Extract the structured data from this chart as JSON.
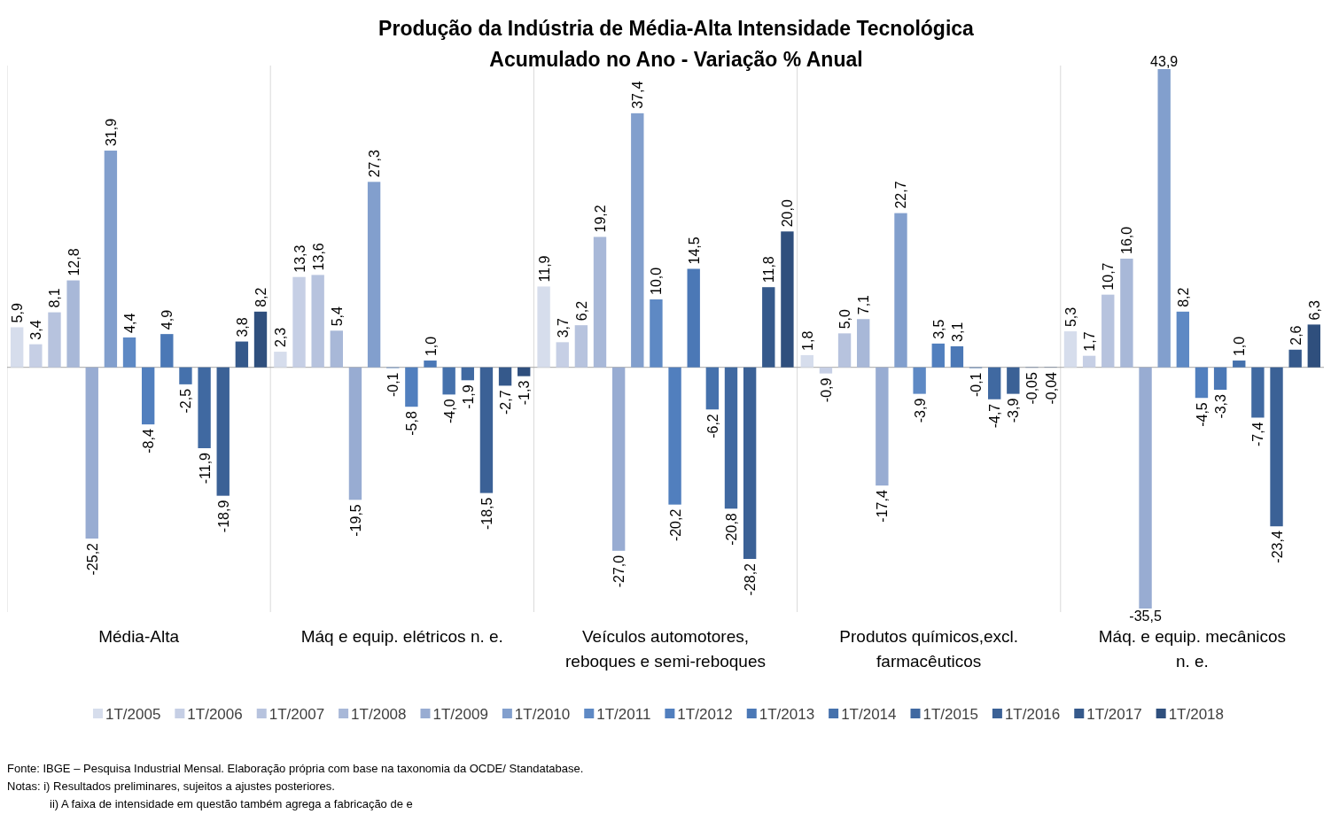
{
  "chart_data": {
    "type": "bar",
    "title": "Produção da Indústria de Média-Alta Intensidade Tecnológica",
    "subtitle": "Acumulado no Ano - Variação % Anual",
    "categories": [
      "Média-Alta",
      "Máq e equip. elétricos n. e.",
      "Veículos automotores, reboques e semi-reboques",
      "Produtos químicos,excl. farmacêuticos",
      "Máq. e equip. mecânicos n. e."
    ],
    "legend": "bottom",
    "series": [
      {
        "name": "1T/2005",
        "color": "#d6ddec",
        "values": [
          5.9,
          2.3,
          11.9,
          1.8,
          5.3
        ],
        "value_labels": [
          "5,9",
          "2,3",
          "11,9",
          "1,8",
          "5,3"
        ]
      },
      {
        "name": "1T/2006",
        "color": "#c6cfe5",
        "values": [
          3.4,
          13.3,
          3.7,
          -0.9,
          1.7
        ],
        "value_labels": [
          "3,4",
          "13,3",
          "3,7",
          "-0,9",
          "1,7"
        ]
      },
      {
        "name": "1T/2007",
        "color": "#b7c3de",
        "values": [
          8.1,
          13.6,
          6.2,
          5.0,
          10.7
        ],
        "value_labels": [
          "8,1",
          "13,6",
          "6,2",
          "5,0",
          "10,7"
        ]
      },
      {
        "name": "1T/2008",
        "color": "#a8b8d8",
        "values": [
          12.8,
          5.4,
          19.2,
          7.1,
          16.0
        ],
        "value_labels": [
          "12,8",
          "5,4",
          "19,2",
          "7,1",
          "16,0"
        ]
      },
      {
        "name": "1T/2009",
        "color": "#98acd2",
        "values": [
          -25.2,
          -19.5,
          -27.0,
          -17.4,
          -35.5
        ],
        "value_labels": [
          "-25,2",
          "-19,5",
          "-27,0",
          "-17,4",
          "-35,5"
        ]
      },
      {
        "name": "1T/2010",
        "color": "#829fcd",
        "values": [
          31.9,
          27.3,
          37.4,
          22.7,
          43.9
        ],
        "value_labels": [
          "31,9",
          "27,3",
          "37,4",
          "22,7",
          "43,9"
        ]
      },
      {
        "name": "1T/2011",
        "color": "#5e89c4",
        "values": [
          4.4,
          -0.1,
          10.0,
          -3.9,
          8.2
        ],
        "value_labels": [
          "4,4",
          "-0,1",
          "10,0",
          "-3,9",
          "8,2"
        ]
      },
      {
        "name": "1T/2012",
        "color": "#517fbe",
        "values": [
          -8.4,
          -5.8,
          -20.2,
          3.5,
          -4.5
        ],
        "value_labels": [
          "-8,4",
          "-5,8",
          "-20,2",
          "3,5",
          "-4,5"
        ]
      },
      {
        "name": "1T/2013",
        "color": "#4b78b6",
        "values": [
          4.9,
          1.0,
          14.5,
          3.1,
          -3.3
        ],
        "value_labels": [
          "4,9",
          "1,0",
          "14,5",
          "3,1",
          "-3,3"
        ]
      },
      {
        "name": "1T/2014",
        "color": "#4571ac",
        "values": [
          -2.5,
          -4.0,
          -6.2,
          -0.1,
          1.0
        ],
        "value_labels": [
          "-2,5",
          "-4,0",
          "-6,2",
          "-0,1",
          "1,0"
        ]
      },
      {
        "name": "1T/2015",
        "color": "#4069a1",
        "values": [
          -11.9,
          -1.9,
          -20.8,
          -4.7,
          -7.4
        ],
        "value_labels": [
          "-11,9",
          "-1,9",
          "-20,8",
          "-4,7",
          "-7,4"
        ]
      },
      {
        "name": "1T/2016",
        "color": "#3b6196",
        "values": [
          -18.9,
          -18.5,
          -28.2,
          -3.9,
          -23.4
        ],
        "value_labels": [
          "-18,9",
          "-18,5",
          "-28,2",
          "-3,9",
          "-23,4"
        ]
      },
      {
        "name": "1T/2017",
        "color": "#35598b",
        "values": [
          3.8,
          -2.7,
          11.8,
          -0.05,
          2.6
        ],
        "value_labels": [
          "3,8",
          "-2,7",
          "11,8",
          "-0,05",
          "2,6"
        ]
      },
      {
        "name": "1T/2018",
        "color": "#2f4f7d",
        "values": [
          8.2,
          -1.3,
          20.0,
          -0.04,
          6.3
        ],
        "value_labels": [
          "8,2",
          "-1,3",
          "20,0",
          "-0,04",
          "6,3"
        ]
      }
    ],
    "annotations": [
      "Fonte: IBGE – Pesquisa Industrial Mensal. Elaboração própria com base na taxonomia da OCDE/ Standatabase.",
      "Notas: i) Resultados preliminares, sujeitos a ajustes posteriores.",
      "ii) A faixa de intensidade em questão também agrega a fabricação de e"
    ]
  }
}
